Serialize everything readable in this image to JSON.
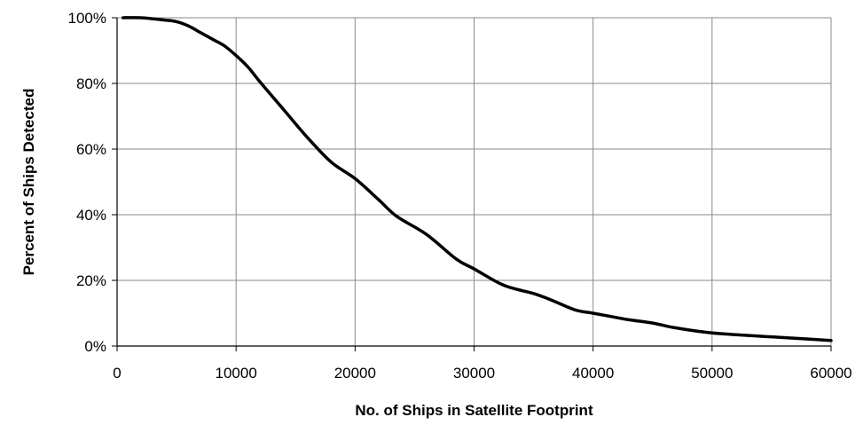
{
  "chart_data": {
    "type": "line",
    "title": "",
    "xlabel": "No. of Ships in Satellite Footprint",
    "ylabel": "Percent of Ships Detected",
    "xlim": [
      0,
      60000
    ],
    "ylim": [
      0,
      100
    ],
    "x_ticks": [
      0,
      10000,
      20000,
      30000,
      40000,
      50000,
      60000
    ],
    "x_tick_labels": [
      "0",
      "10000",
      "20000",
      "30000",
      "40000",
      "50000",
      "60000"
    ],
    "y_ticks": [
      0,
      20,
      40,
      60,
      80,
      100
    ],
    "y_tick_labels": [
      "0%",
      "20%",
      "40%",
      "60%",
      "80%",
      "100%"
    ],
    "grid": true,
    "legend": "none",
    "series": [
      {
        "color": "#000000",
        "x": [
          500,
          2000,
          4000,
          5000,
          6000,
          7000,
          8000,
          9000,
          10000,
          11000,
          12000,
          14000,
          16000,
          18000,
          20000,
          22000,
          23500,
          26000,
          28500,
          30000,
          32500,
          35000,
          36500,
          38500,
          40000,
          41500,
          43000,
          45000,
          47000,
          50000,
          55000,
          60000
        ],
        "y": [
          100,
          100,
          99.3,
          98.8,
          97.5,
          95.5,
          93.5,
          91.5,
          88.5,
          85,
          80.5,
          72,
          63.5,
          56,
          51,
          44.5,
          39.5,
          34,
          26.5,
          23.5,
          18.5,
          16,
          14,
          11,
          10,
          9,
          8,
          7,
          5.5,
          4,
          2.8,
          1.7
        ]
      }
    ]
  }
}
